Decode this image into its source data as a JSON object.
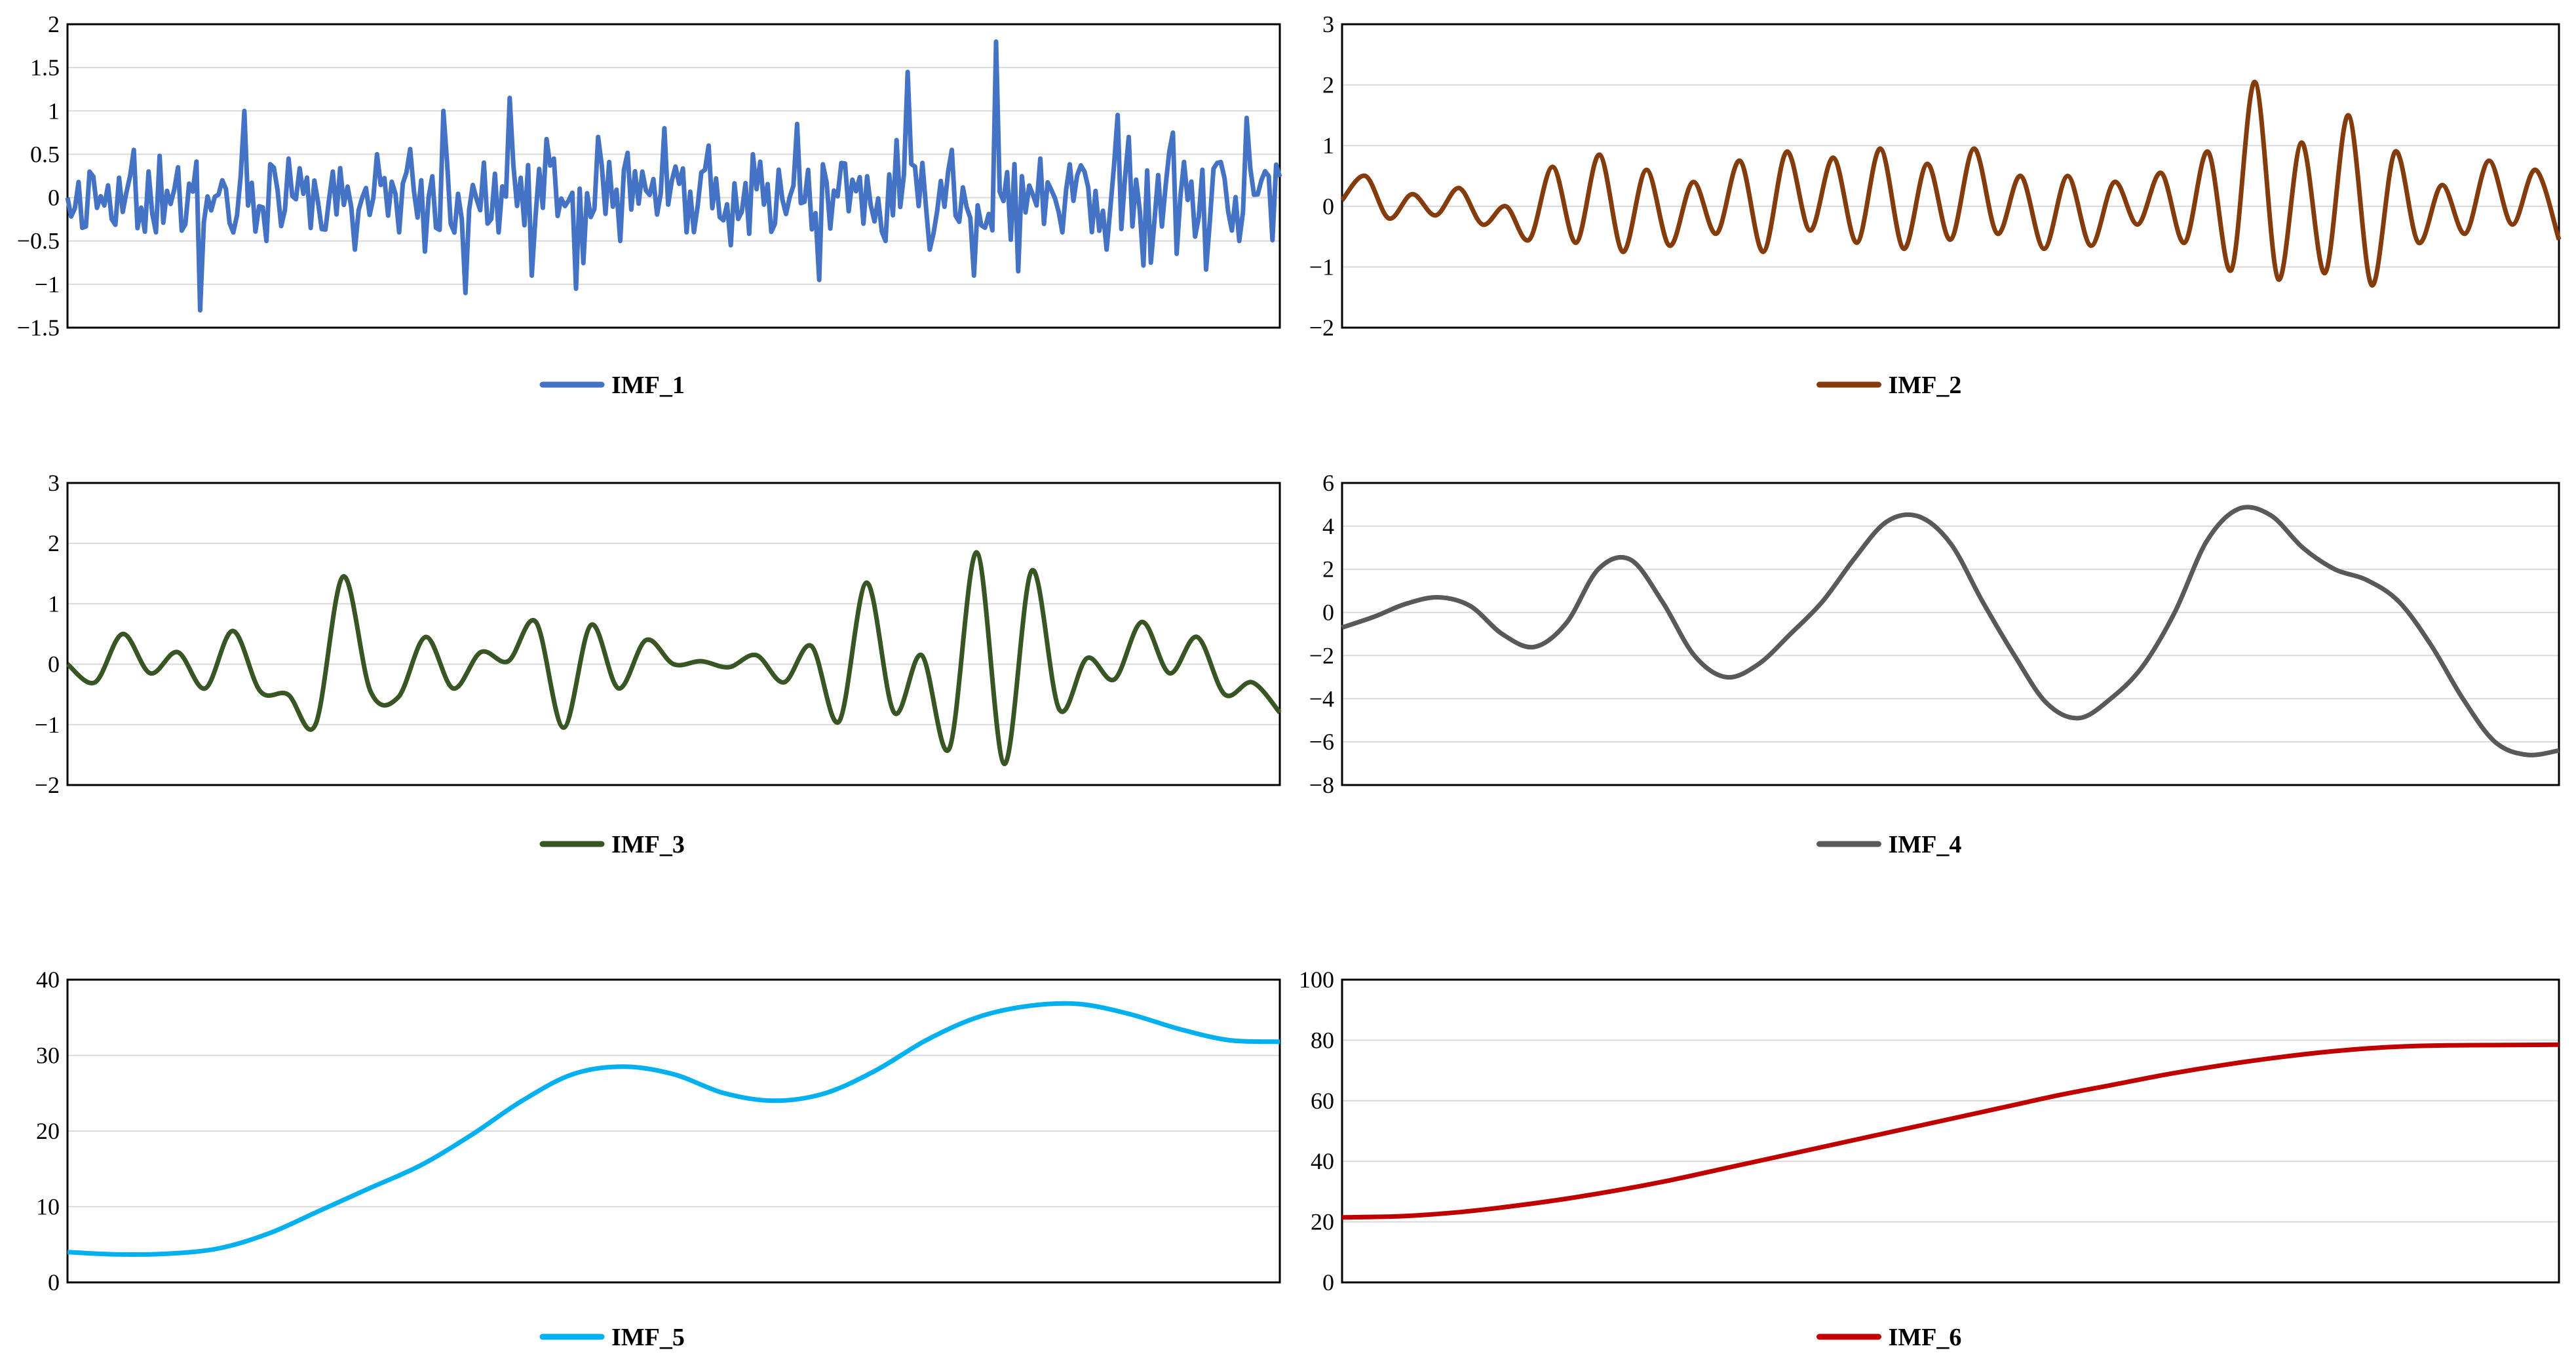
{
  "chart_data": [
    {
      "type": "line",
      "series": [
        {
          "name": "IMF_1",
          "color": "#4472C4",
          "kind": "noise",
          "seed": 11,
          "period": 7.2,
          "amp": 0.42,
          "values": [
            0,
            0.3,
            -0.25,
            0.55,
            -0.4,
            0.35,
            -1.3,
            0.2,
            1.0,
            -0.5,
            0.45,
            -0.35,
            0.3,
            -0.6,
            0.5,
            -0.4,
            0.2,
            1.0,
            -1.1,
            0.85,
            -0.3,
            1.15,
            -0.9,
            0.45,
            -1.05,
            0.7,
            -0.5,
            0.3,
            0.8,
            -0.4,
            0.6,
            -0.55,
            0.5,
            -0.3,
            0.85,
            -0.95,
            0.4,
            -0.3,
            0.6,
            -0.5,
            1.45,
            -0.6,
            0.55,
            -0.9,
            1.8,
            -0.85,
            0.45,
            -0.4,
            0.3,
            -0.6,
            0.7,
            -0.75,
            0.75,
            -0.45,
            0.4,
            -0.5,
            0.2,
            -0.3
          ]
        }
      ],
      "yticks": [
        -1.5,
        -1,
        -0.5,
        0,
        0.5,
        1,
        1.5,
        2
      ],
      "ylim": [
        -1.5,
        2
      ]
    },
    {
      "type": "line",
      "series": [
        {
          "name": "IMF_2",
          "color": "#843C0C",
          "kind": "osc",
          "period": 11,
          "values": [
            0.1,
            0.5,
            -0.2,
            0.2,
            -0.15,
            0.3,
            -0.3,
            0.0,
            -0.55,
            0.65,
            -0.6,
            0.85,
            -0.75,
            0.6,
            -0.65,
            0.4,
            -0.45,
            0.75,
            -0.75,
            0.9,
            -0.4,
            0.8,
            -0.6,
            0.95,
            -0.7,
            0.7,
            -0.55,
            0.95,
            -0.45,
            0.5,
            -0.7,
            0.5,
            -0.65,
            0.4,
            -0.3,
            0.55,
            -0.6,
            0.9,
            -1.05,
            2.05,
            -1.2,
            1.05,
            -1.1,
            1.5,
            -1.3,
            0.9,
            -0.6,
            0.35,
            -0.45,
            0.75,
            -0.3,
            0.6,
            -0.55
          ]
        }
      ],
      "yticks": [
        -2,
        -1,
        0,
        1,
        2,
        3
      ],
      "ylim": [
        -2,
        3
      ]
    },
    {
      "type": "line",
      "series": [
        {
          "name": "IMF_3",
          "color": "#375623",
          "kind": "smooth",
          "values": [
            0.0,
            -0.3,
            0.5,
            -0.15,
            0.2,
            -0.4,
            0.55,
            -0.45,
            -0.5,
            -1.0,
            1.45,
            -0.45,
            -0.55,
            0.45,
            -0.4,
            0.2,
            0.05,
            0.7,
            -1.05,
            0.65,
            -0.4,
            0.4,
            0.0,
            0.05,
            -0.05,
            0.15,
            -0.3,
            0.3,
            -0.95,
            1.35,
            -0.8,
            0.15,
            -1.4,
            1.85,
            -1.65,
            1.55,
            -0.75,
            0.1,
            -0.25,
            0.7,
            -0.15,
            0.45,
            -0.5,
            -0.3,
            -0.8
          ]
        }
      ],
      "yticks": [
        -2,
        -1,
        0,
        1,
        2,
        3
      ],
      "ylim": [
        -2,
        3
      ]
    },
    {
      "type": "line",
      "series": [
        {
          "name": "IMF_4",
          "color": "#595959",
          "kind": "smooth",
          "values": [
            -0.7,
            -0.2,
            0.4,
            0.7,
            0.3,
            -1.0,
            -1.6,
            -0.5,
            2.0,
            2.45,
            0.5,
            -2.0,
            -3.0,
            -2.4,
            -1.0,
            0.5,
            2.5,
            4.2,
            4.45,
            3.2,
            0.5,
            -2.0,
            -4.2,
            -4.9,
            -4.0,
            -2.5,
            0.0,
            3.3,
            4.8,
            4.5,
            3.0,
            2.0,
            1.5,
            0.5,
            -1.5,
            -4.0,
            -6.0,
            -6.6,
            -6.4
          ]
        }
      ],
      "yticks": [
        -8,
        -6,
        -4,
        -2,
        0,
        2,
        4,
        6
      ],
      "ylim": [
        -8,
        6
      ]
    },
    {
      "type": "line",
      "series": [
        {
          "name": "IMF_5",
          "color": "#00B0F0",
          "kind": "smooth",
          "values": [
            4,
            3.7,
            3.8,
            4.5,
            6.5,
            9.5,
            12.5,
            15.5,
            19.5,
            24,
            27.5,
            28.5,
            27.5,
            25,
            24,
            25,
            28,
            32,
            35,
            36.5,
            36.8,
            35.5,
            33.5,
            32,
            31.8
          ]
        }
      ],
      "yticks": [
        0,
        10,
        20,
        30,
        40
      ],
      "ylim": [
        0,
        40
      ]
    },
    {
      "type": "line",
      "series": [
        {
          "name": "IMF_6",
          "color": "#C00000",
          "kind": "smooth",
          "values": [
            21.5,
            21.8,
            23,
            25,
            27.5,
            30.5,
            34,
            38,
            42,
            46,
            50,
            54,
            58,
            62,
            65.5,
            69,
            72,
            74.5,
            76.5,
            77.8,
            78.3,
            78.4,
            78.5
          ]
        }
      ],
      "yticks": [
        0,
        20,
        40,
        60,
        80,
        100
      ],
      "ylim": [
        0,
        100
      ]
    }
  ]
}
